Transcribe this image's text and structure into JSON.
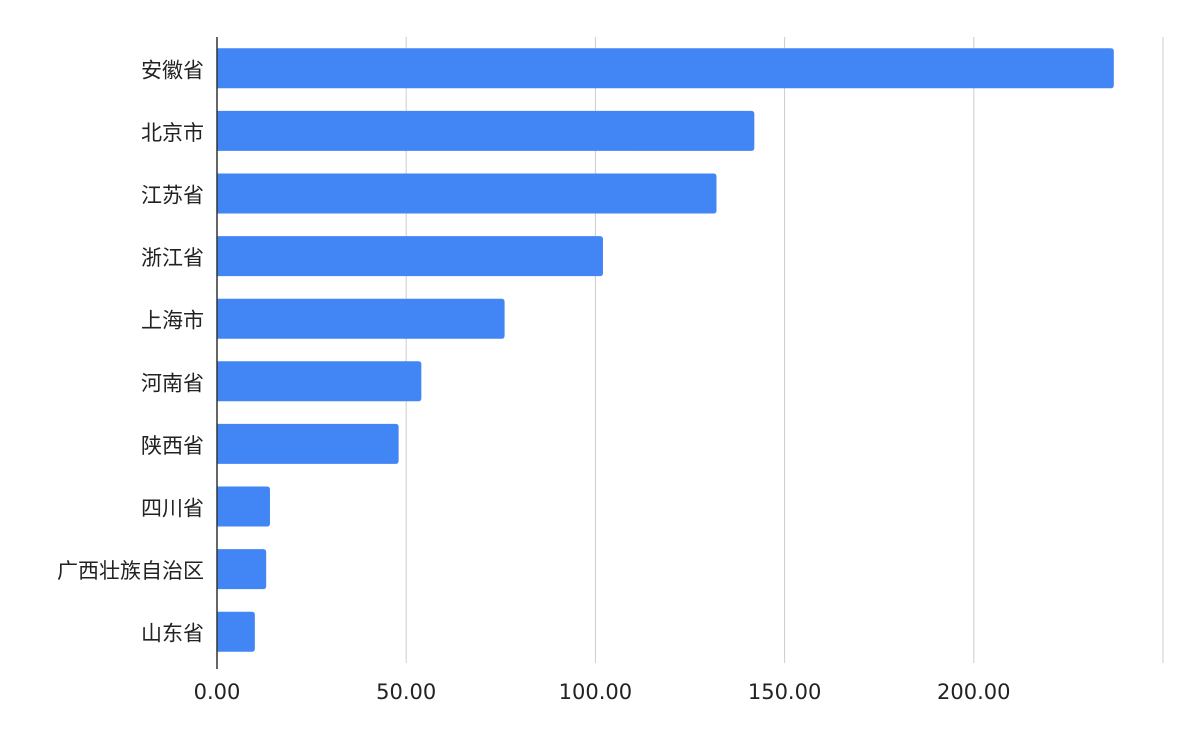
{
  "chart_data": {
    "type": "bar",
    "orientation": "horizontal",
    "title": "",
    "xlabel": "",
    "ylabel": "",
    "categories": [
      "安徽省",
      "北京市",
      "江苏省",
      "浙江省",
      "上海市",
      "河南省",
      "陕西省",
      "四川省",
      "广西壮族自治区",
      "山东省"
    ],
    "values": [
      237,
      142,
      132,
      102,
      76,
      54,
      48,
      14,
      13,
      10
    ],
    "x_ticks": [
      "0.00",
      "50.00",
      "100.00",
      "150.00",
      "200.00"
    ],
    "xlim": [
      0,
      250
    ],
    "grid": true,
    "legend": "none",
    "colors": {
      "bar": "#4285f4",
      "grid": "#cccccc",
      "axis": "#333333",
      "text": "#222222"
    }
  }
}
